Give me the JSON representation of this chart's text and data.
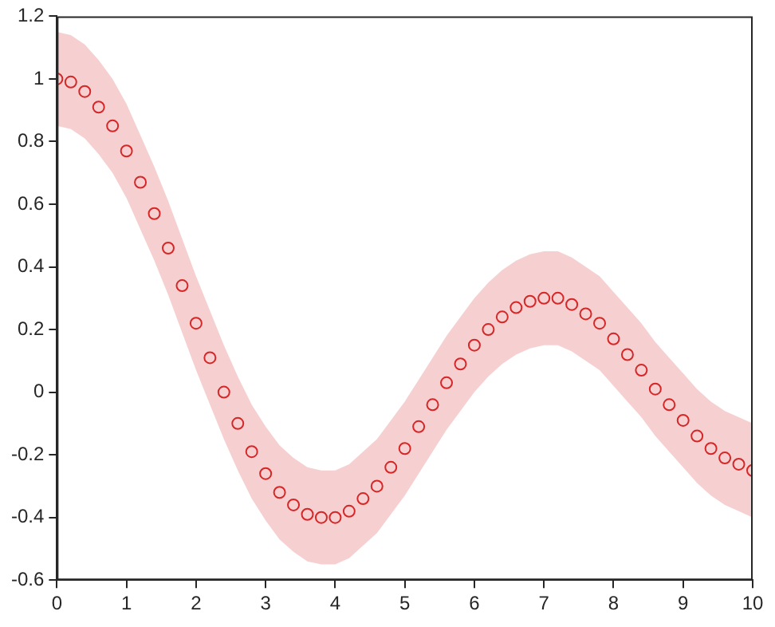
{
  "chart_data": {
    "type": "scatter",
    "marker": "circle",
    "xlim": [
      0,
      10
    ],
    "ylim": [
      -0.6,
      1.2
    ],
    "xticks": [
      0,
      1,
      2,
      3,
      4,
      5,
      6,
      7,
      8,
      9,
      10
    ],
    "yticks": [
      -0.6,
      -0.4,
      -0.2,
      0,
      0.2,
      0.4,
      0.6,
      0.8,
      1,
      1.2
    ],
    "grid": false,
    "legend": false,
    "x": [
      0,
      0.2,
      0.4,
      0.6,
      0.8,
      1,
      1.2,
      1.4,
      1.6,
      1.8,
      2,
      2.2,
      2.4,
      2.6,
      2.8,
      3,
      3.2,
      3.4,
      3.6,
      3.8,
      4,
      4.2,
      4.4,
      4.6,
      4.8,
      5,
      5.2,
      5.4,
      5.6,
      5.8,
      6,
      6.2,
      6.4,
      6.6,
      6.8,
      7,
      7.2,
      7.4,
      7.6,
      7.8,
      8,
      8.2,
      8.4,
      8.6,
      8.8,
      9,
      9.2,
      9.4,
      9.6,
      9.8,
      10
    ],
    "series": [
      {
        "color": "#d62728",
        "values": [
          1,
          0.99,
          0.96,
          0.91,
          0.85,
          0.77,
          0.67,
          0.57,
          0.46,
          0.34,
          0.22,
          0.11,
          0,
          -0.1,
          -0.19,
          -0.26,
          -0.32,
          -0.36,
          -0.39,
          -0.4,
          -0.4,
          -0.38,
          -0.34,
          -0.3,
          -0.24,
          -0.18,
          -0.11,
          -0.04,
          0.03,
          0.09,
          0.15,
          0.2,
          0.24,
          0.27,
          0.29,
          0.3,
          0.3,
          0.28,
          0.25,
          0.22,
          0.17,
          0.12,
          0.07,
          0.01,
          -0.04,
          -0.09,
          -0.14,
          -0.18,
          -0.21,
          -0.23,
          -0.25
        ],
        "lower": [
          0.85,
          0.84,
          0.81,
          0.76,
          0.7,
          0.62,
          0.52,
          0.42,
          0.31,
          0.19,
          0.07,
          -0.04,
          -0.15,
          -0.25,
          -0.34,
          -0.41,
          -0.47,
          -0.51,
          -0.54,
          -0.55,
          -0.55,
          -0.53,
          -0.49,
          -0.45,
          -0.39,
          -0.33,
          -0.26,
          -0.19,
          -0.12,
          -0.06,
          0,
          0.05,
          0.09,
          0.12,
          0.14,
          0.15,
          0.15,
          0.13,
          0.1,
          0.07,
          0.02,
          -0.03,
          -0.08,
          -0.14,
          -0.19,
          -0.24,
          -0.29,
          -0.33,
          -0.36,
          -0.38,
          -0.4
        ],
        "upper": [
          1.15,
          1.14,
          1.11,
          1.06,
          1,
          0.92,
          0.82,
          0.72,
          0.61,
          0.49,
          0.37,
          0.26,
          0.15,
          0.05,
          -0.04,
          -0.11,
          -0.17,
          -0.21,
          -0.24,
          -0.25,
          -0.25,
          -0.23,
          -0.19,
          -0.15,
          -0.09,
          -0.03,
          0.04,
          0.11,
          0.18,
          0.24,
          0.3,
          0.35,
          0.39,
          0.42,
          0.44,
          0.45,
          0.45,
          0.43,
          0.4,
          0.37,
          0.32,
          0.27,
          0.22,
          0.16,
          0.11,
          0.06,
          0.01,
          -0.03,
          -0.06,
          -0.08,
          -0.1
        ]
      }
    ]
  }
}
